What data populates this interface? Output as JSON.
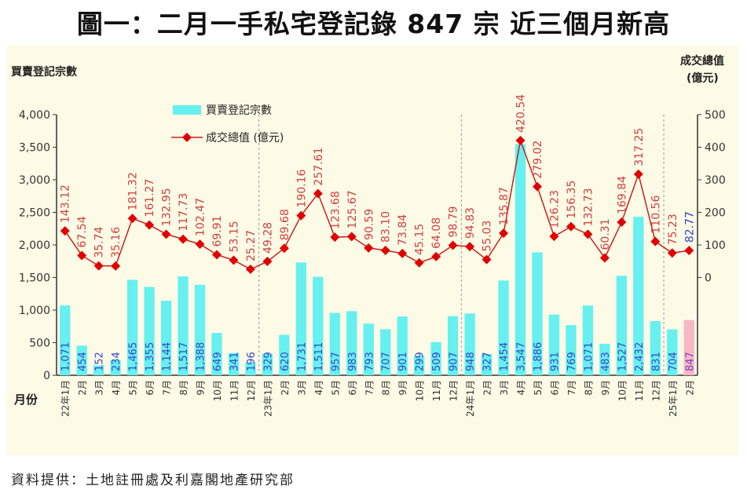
{
  "title": "圖一：二月一手私宅登記錄 847 宗  近三個月新高",
  "source": "資料提供：土地註冊處及利嘉閣地產研究部",
  "chart_data": {
    "type": "bar+line",
    "title": "圖一：二月一手私宅登記錄 847 宗  近三個月新高",
    "xlabel": "月份",
    "ylabel_left": "買賣登記宗數",
    "ylabel_right": "成交總值\n(億元)",
    "ylabel_right_lines": [
      "成交總值",
      "(億元)"
    ],
    "ylim_left": [
      0,
      4000
    ],
    "yticks_left": [
      0,
      500,
      1000,
      1500,
      2000,
      2500,
      3000,
      3500,
      4000
    ],
    "ytick_labels_left": [
      "0",
      "500",
      "1,000",
      "1,500",
      "2,000",
      "2,500",
      "3,000",
      "3,500",
      "4,000"
    ],
    "ylim_right": [
      0,
      500
    ],
    "yticks_right": [
      0,
      100,
      200,
      300,
      400,
      500
    ],
    "legend_position": "top-left",
    "grid": false,
    "categories": [
      "22年1月",
      "2月",
      "3月",
      "4月",
      "5月",
      "6月",
      "7月",
      "8月",
      "9月",
      "10月",
      "11月",
      "12月",
      "23年1月",
      "2月",
      "3月",
      "4月",
      "5月",
      "6月",
      "7月",
      "8月",
      "9月",
      "10月",
      "11月",
      "12月",
      "24年1月",
      "2月",
      "3月",
      "4月",
      "5月",
      "6月",
      "7月",
      "8月",
      "9月",
      "10月",
      "11月",
      "12月",
      "25年1月",
      "2月"
    ],
    "series": [
      {
        "name": "買賣登記宗數",
        "type": "bar",
        "axis": "left",
        "color": "#66f0f0",
        "highlight_last_color": "#f7b8c4",
        "values": [
          1071,
          454,
          152,
          234,
          1465,
          1355,
          1144,
          1517,
          1388,
          649,
          341,
          196,
          329,
          620,
          1731,
          1511,
          957,
          983,
          793,
          707,
          901,
          299,
          509,
          907,
          948,
          327,
          1454,
          3547,
          1886,
          931,
          769,
          1071,
          483,
          1527,
          2432,
          831,
          704,
          847
        ],
        "labels": [
          "1,071",
          "454",
          "152",
          "234",
          "1,465",
          "1,355",
          "1,144",
          "1,517",
          "1,388",
          "649",
          "341",
          "196",
          "329",
          "620",
          "1,731",
          "1,511",
          "957",
          "983",
          "793",
          "707",
          "901",
          "299",
          "509",
          "907",
          "948",
          "327",
          "1,454",
          "3,547",
          "1,886",
          "931",
          "769",
          "1,071",
          "483",
          "1,527",
          "2,432",
          "831",
          "704",
          "847"
        ]
      },
      {
        "name": "成交總值 (億元)",
        "type": "line",
        "axis": "right",
        "color": "#e01010",
        "values": [
          143.12,
          67.54,
          35.74,
          35.16,
          181.32,
          161.27,
          132.95,
          117.73,
          102.47,
          69.91,
          53.15,
          25.27,
          49.28,
          89.68,
          190.16,
          257.61,
          123.68,
          125.67,
          90.59,
          83.1,
          73.84,
          45.15,
          64.08,
          98.79,
          94.83,
          55.03,
          135.87,
          420.54,
          279.02,
          126.23,
          156.35,
          132.73,
          60.31,
          169.84,
          317.25,
          110.56,
          75.23,
          82.77
        ],
        "labels": [
          "143.12",
          "67.54",
          "35.74",
          "35.16",
          "181.32",
          "161.27",
          "132.95",
          "117.73",
          "102.47",
          "69.91",
          "53.15",
          "25.27",
          "49.28",
          "89.68",
          "190.16",
          "257.61",
          "123.68",
          "125.67",
          "90.59",
          "83.10",
          "73.84",
          "45.15",
          "64.08",
          "98.79",
          "94.83",
          "55.03",
          "135.87",
          "420.54",
          "279.02",
          "126.23",
          "156.35",
          "132.73",
          "60.31",
          "169.84",
          "317.25",
          "110.56",
          "75.23",
          "82.77"
        ]
      }
    ],
    "bar_label_color": "#3344cc",
    "line_label_color": "#d04040",
    "last_line_label_color": "#3344cc"
  }
}
